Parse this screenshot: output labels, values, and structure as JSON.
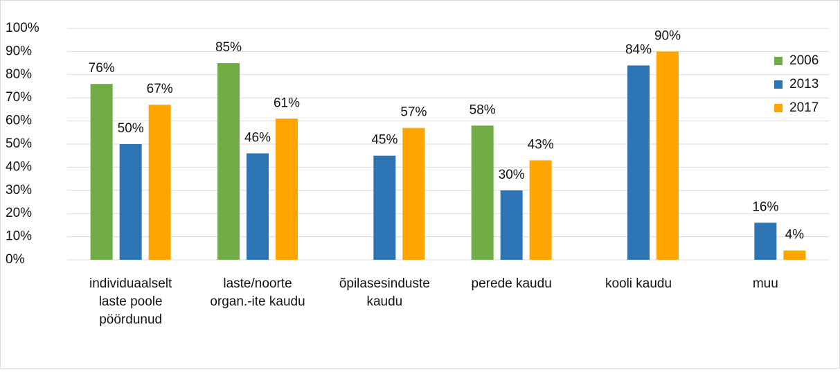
{
  "chart_data": {
    "type": "bar",
    "categories": [
      [
        "individuaalselt",
        "laste poole",
        "pöördunud"
      ],
      [
        "laste/noorte",
        "organ.-ite kaudu"
      ],
      [
        "õpilasesinduste",
        "kaudu"
      ],
      [
        "perede kaudu"
      ],
      [
        "kooli kaudu"
      ],
      [
        "muu"
      ]
    ],
    "series": [
      {
        "name": "2006",
        "color": "#70ad47",
        "values": [
          76,
          85,
          null,
          58,
          null,
          null
        ],
        "value_labels": [
          "76%",
          "85%",
          null,
          "58%",
          null,
          null
        ]
      },
      {
        "name": "2013",
        "color": "#2e75b6",
        "values": [
          50,
          46,
          45,
          30,
          84,
          16
        ],
        "value_labels": [
          "50%",
          "46%",
          "45%",
          "30%",
          "84%",
          "16%"
        ]
      },
      {
        "name": "2017",
        "color": "#ffa500",
        "values": [
          67,
          61,
          57,
          43,
          90,
          4
        ],
        "value_labels": [
          "67%",
          "61%",
          "57%",
          "43%",
          "90%",
          "4%"
        ]
      }
    ],
    "ylim": [
      0,
      100
    ],
    "yticks": [
      {
        "value": 0,
        "label": "0%"
      },
      {
        "value": 10,
        "label": "10%"
      },
      {
        "value": 20,
        "label": "20%"
      },
      {
        "value": 30,
        "label": "30%"
      },
      {
        "value": 40,
        "label": "40%"
      },
      {
        "value": 50,
        "label": "50%"
      },
      {
        "value": 60,
        "label": "60%"
      },
      {
        "value": 70,
        "label": "70%"
      },
      {
        "value": 80,
        "label": "80%"
      },
      {
        "value": 90,
        "label": "90%"
      },
      {
        "value": 100,
        "label": "100%"
      }
    ],
    "grid": true,
    "legend": "right"
  }
}
